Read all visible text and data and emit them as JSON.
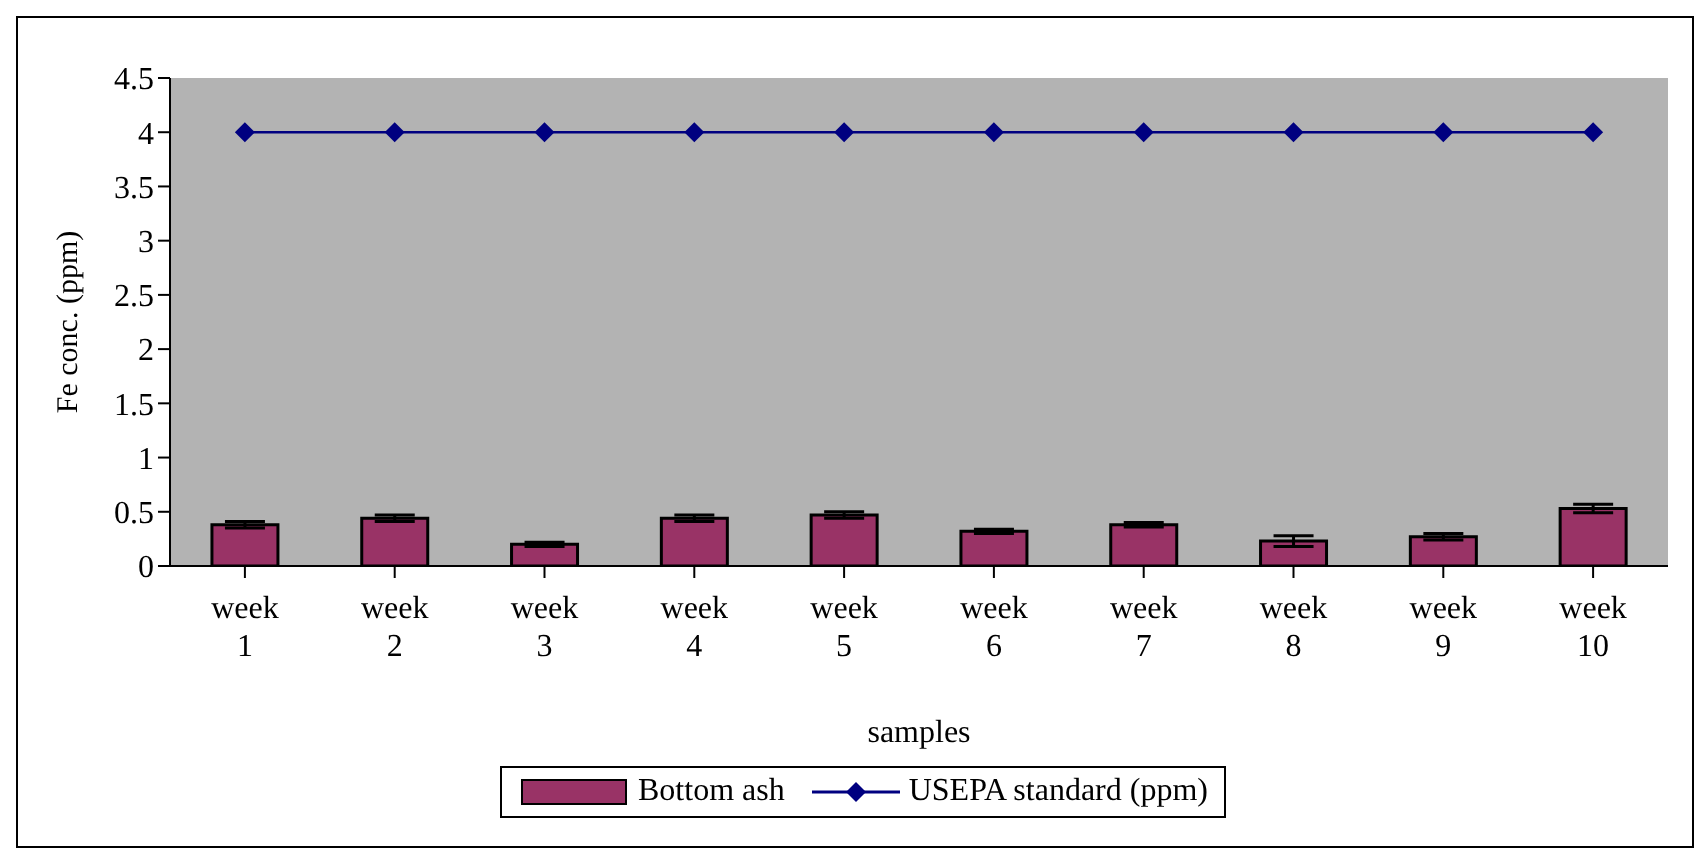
{
  "chart_data": {
    "type": "bar",
    "xlabel": "samples",
    "ylabel": "Fe conc. (ppm)",
    "categories": [
      "week 1",
      "week 2",
      "week 3",
      "week 4",
      "week 5",
      "week 6",
      "week 7",
      "week 8",
      "week 9",
      "week 10"
    ],
    "series": [
      {
        "name": "Bottom ash",
        "color": "#993366",
        "values": [
          0.38,
          0.44,
          0.2,
          0.44,
          0.47,
          0.32,
          0.38,
          0.23,
          0.27,
          0.53
        ],
        "errors": [
          0.03,
          0.03,
          0.02,
          0.03,
          0.03,
          0.02,
          0.02,
          0.05,
          0.03,
          0.04
        ]
      },
      {
        "name": "USEPA standard (ppm)",
        "type": "line",
        "color": "#000080",
        "marker": "diamond",
        "values": [
          4,
          4,
          4,
          4,
          4,
          4,
          4,
          4,
          4,
          4
        ]
      }
    ],
    "ylim": [
      0,
      4.5
    ],
    "yticks": [
      0,
      0.5,
      1,
      1.5,
      2,
      2.5,
      3,
      3.5,
      4,
      4.5
    ],
    "grid": false,
    "legend": "bottom"
  }
}
